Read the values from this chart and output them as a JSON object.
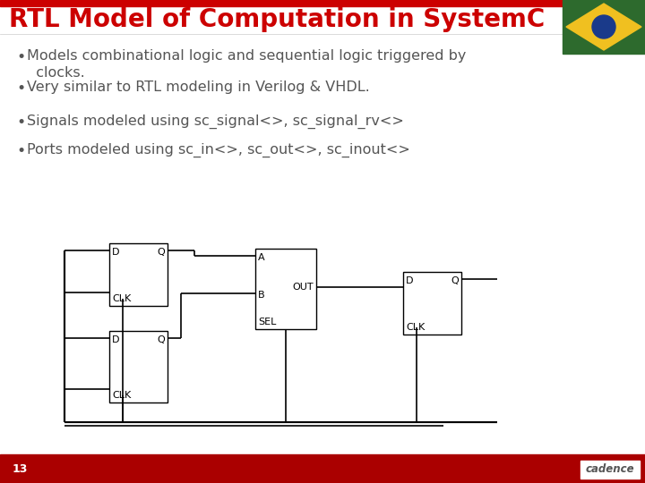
{
  "title": "RTL Model of Computation in SystemC",
  "title_color": "#cc0000",
  "bullet_points": [
    "Models combinational logic and sequential logic triggered by\n  clocks.",
    "Very similar to RTL modeling in Verilog & VHDL.",
    "Signals modeled using sc_signal<>, sc_signal_rv<>",
    "Ports modeled using sc_in<>, sc_out<>, sc_inout<>"
  ],
  "bullet_color": "#555555",
  "bg_color": "#ffffff",
  "top_bar_color": "#cc0000",
  "bottom_bar_color": "#aa0000",
  "footer_text": "13",
  "footer_color": "#ffffff",
  "line_color": "#000000",
  "font_size_title": 20,
  "font_size_bullets": 11.5,
  "font_size_diagram": 8,
  "cadence_color": "#ffffff"
}
